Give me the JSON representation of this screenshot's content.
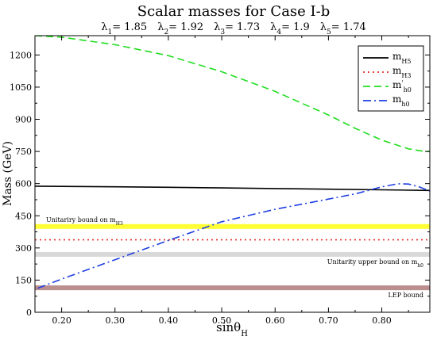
{
  "chart_data": {
    "type": "line",
    "title": "Scalar masses for Case I-b",
    "subtitle": [
      {
        "sym": "λ",
        "sub": "1",
        "val": "= 1.85"
      },
      {
        "sym": "λ",
        "sub": "2",
        "val": "= 1.92"
      },
      {
        "sym": "λ",
        "sub": "3",
        "val": "= 1.73"
      },
      {
        "sym": "λ",
        "sub": "4",
        "val": "= 1.9"
      },
      {
        "sym": "λ",
        "sub": "5",
        "val": "= 1.74"
      }
    ],
    "xlabel": {
      "base": "sinθ",
      "sub": "H"
    },
    "ylabel": "Mass (GeV)",
    "xlim": [
      0.15,
      0.89
    ],
    "ylim": [
      0,
      1290
    ],
    "xticks": [
      "0.20",
      "0.30",
      "0.40",
      "0.50",
      "0.60",
      "0.70",
      "0.80"
    ],
    "yticks": [
      "0",
      "150",
      "300",
      "450",
      "600",
      "750",
      "900",
      "1050",
      "1200"
    ],
    "grid": false,
    "legend_position": "top-right",
    "bands": [
      {
        "name": "Unitariry bound on m_H3",
        "label": {
          "base": "Unitariry bound on m",
          "sub": "H3"
        },
        "y": 400,
        "color": "#ffff33",
        "label_pos": "left-above"
      },
      {
        "name": "Unitarity upper bound on m_h0",
        "label": {
          "base": "Unitarity upper bound on m",
          "sub": "h0"
        },
        "y": 270,
        "color": "#d9d9d9",
        "label_pos": "right-below"
      },
      {
        "name": "LEP bound",
        "label": {
          "base": "LEP bound",
          "sub": ""
        },
        "y": 114,
        "color": "#bc8f8f",
        "label_pos": "right-below"
      }
    ],
    "series": [
      {
        "name": "m_H5",
        "legend": {
          "base": "m",
          "sub": "H5",
          "prime": ""
        },
        "color": "#000000",
        "dash": "",
        "x": [
          0.15,
          0.2,
          0.3,
          0.4,
          0.5,
          0.6,
          0.7,
          0.8,
          0.89
        ],
        "y": [
          588,
          587,
          585,
          583,
          580,
          577,
          574,
          571,
          568
        ]
      },
      {
        "name": "m_H3",
        "legend": {
          "base": "m",
          "sub": "H3",
          "prime": ""
        },
        "color": "#e8302a",
        "dash": "2 4",
        "x": [
          0.15,
          0.89
        ],
        "y": [
          338,
          338
        ]
      },
      {
        "name": "m'_h0",
        "legend": {
          "base": "m",
          "sub": "h0",
          "prime": "'"
        },
        "color": "#22dd22",
        "dash": "9 5",
        "x": [
          0.15,
          0.2,
          0.3,
          0.4,
          0.5,
          0.6,
          0.7,
          0.75,
          0.8,
          0.85,
          0.88,
          0.89
        ],
        "y": [
          1290,
          1283,
          1248,
          1197,
          1122,
          1030,
          920,
          858,
          803,
          762,
          750,
          750
        ]
      },
      {
        "name": "m_h0",
        "legend": {
          "base": "m",
          "sub": "h0",
          "prime": ""
        },
        "color": "#1f3fe0",
        "dash": "10 4 2 4",
        "x": [
          0.155,
          0.2,
          0.3,
          0.4,
          0.5,
          0.6,
          0.7,
          0.75,
          0.8,
          0.83,
          0.85,
          0.87,
          0.89
        ],
        "y": [
          112,
          155,
          245,
          335,
          422,
          480,
          528,
          552,
          585,
          599,
          598,
          585,
          565
        ]
      }
    ]
  }
}
